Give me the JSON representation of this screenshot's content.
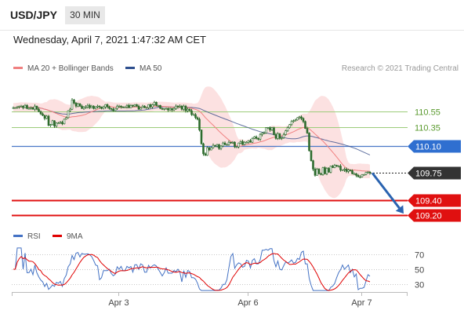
{
  "header": {
    "symbol": "USD/JPY",
    "timeframe": "30 MIN"
  },
  "datetime": "Wednesday, April 7, 2021 1:47:32 AM CET",
  "legend_main": [
    {
      "label": "MA 20 + Bollinger Bands",
      "color": "#f08080"
    },
    {
      "label": "MA 50",
      "color": "#2e4f8e"
    }
  ],
  "credit": "Research © 2021 Trading Central",
  "legend_rsi": [
    {
      "label": "RSI",
      "color": "#4472c4"
    },
    {
      "label": "9MA",
      "color": "#e00000"
    }
  ],
  "colors": {
    "candle": "#2d6b2d",
    "band": "#f9c9c9",
    "ma20": "#f08080",
    "ma50": "#3a4f8a",
    "arrow": "#2a63b0"
  },
  "chart_data": [
    {
      "type": "candlestick",
      "ylim": [
        109.12,
        110.98
      ],
      "grid": false,
      "levels": [
        {
          "value": 110.55,
          "label": "110.55",
          "style": "green-line"
        },
        {
          "value": 110.35,
          "label": "110.35",
          "style": "green-line"
        },
        {
          "value": 110.1,
          "label": "110.10",
          "style": "blue-tag"
        },
        {
          "value": 109.75,
          "label": "109.75",
          "style": "current-price"
        },
        {
          "value": 109.4,
          "label": "109.40",
          "style": "red-tag"
        },
        {
          "value": 109.2,
          "label": "109.20",
          "style": "red-tag"
        }
      ],
      "x_ticks": [
        "Apr 3",
        "Apr 6",
        "Apr 7"
      ],
      "close": [
        110.6,
        110.6,
        110.61,
        110.62,
        110.62,
        110.6,
        110.63,
        110.59,
        110.59,
        110.6,
        110.58,
        110.62,
        110.58,
        110.55,
        110.52,
        110.5,
        110.46,
        110.49,
        110.37,
        110.38,
        110.43,
        110.36,
        110.4,
        110.4,
        110.41,
        110.39,
        110.45,
        110.47,
        110.56,
        110.58,
        110.7,
        110.66,
        110.62,
        110.65,
        110.62,
        110.59,
        110.61,
        110.61,
        110.63,
        110.6,
        110.62,
        110.59,
        110.61,
        110.62,
        110.61,
        110.59,
        110.61,
        110.64,
        110.61,
        110.59,
        110.58,
        110.56,
        110.59,
        110.62,
        110.62,
        110.61,
        110.6,
        110.61,
        110.63,
        110.6,
        110.63,
        110.62,
        110.64,
        110.62,
        110.58,
        110.6,
        110.62,
        110.6,
        110.6,
        110.64,
        110.61,
        110.64,
        110.67,
        110.63,
        110.63,
        110.59,
        110.58,
        110.59,
        110.59,
        110.57,
        110.59,
        110.57,
        110.59,
        110.62,
        110.61,
        110.62,
        110.58,
        110.62,
        110.56,
        110.58,
        110.56,
        110.51,
        110.51,
        110.47,
        110.45,
        110.31,
        110.13,
        110.0,
        109.98,
        110.08,
        110.05,
        110.08,
        110.11,
        110.1,
        110.12,
        110.07,
        110.1,
        110.14,
        110.12,
        110.12,
        110.15,
        110.14,
        110.15,
        110.09,
        110.09,
        110.14,
        110.16,
        110.12,
        110.15,
        110.15,
        110.17,
        110.15,
        110.2,
        110.22,
        110.2,
        110.19,
        110.25,
        110.27,
        110.27,
        110.34,
        110.34,
        110.31,
        110.34,
        110.25,
        110.2,
        110.26,
        110.2,
        110.21,
        110.25,
        110.3,
        110.34,
        110.38,
        110.42,
        110.43,
        110.44,
        110.47,
        110.48,
        110.46,
        110.42,
        110.33,
        110.27,
        110.04,
        109.91,
        109.8,
        109.72,
        109.8,
        109.74,
        109.73,
        109.82,
        109.74,
        109.81,
        109.76,
        109.84,
        109.82,
        109.85,
        109.84,
        109.84,
        109.79,
        109.79,
        109.8,
        109.77,
        109.79,
        109.78,
        109.74,
        109.74,
        109.72,
        109.7,
        109.7,
        109.73,
        109.73,
        109.76,
        109.76,
        109.75
      ]
    },
    {
      "type": "line",
      "title": "RSI",
      "ylim": [
        20,
        80
      ],
      "y_ticks": [
        70,
        50,
        30
      ],
      "series": [
        {
          "name": "RSI"
        },
        {
          "name": "9MA"
        }
      ]
    }
  ]
}
